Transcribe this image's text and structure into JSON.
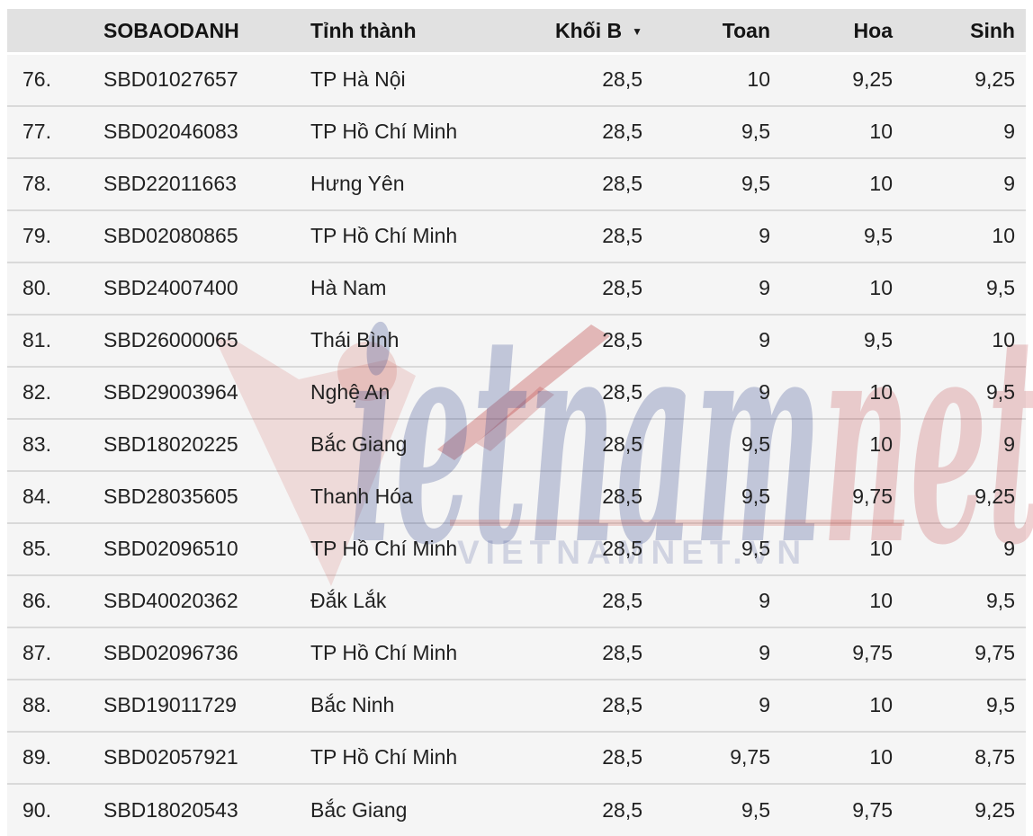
{
  "table": {
    "columns": [
      {
        "id": "index",
        "label": ""
      },
      {
        "id": "sbd",
        "label": "SOBAODANH"
      },
      {
        "id": "province",
        "label": "Tỉnh thành"
      },
      {
        "id": "khoi_b",
        "label": "Khối B"
      },
      {
        "id": "toan",
        "label": "Toan"
      },
      {
        "id": "hoa",
        "label": "Hoa"
      },
      {
        "id": "sinh",
        "label": "Sinh"
      }
    ],
    "rows": [
      {
        "index": "76.",
        "sbd": "SBD01027657",
        "province": "TP Hà Nội",
        "khoi_b": "28,5",
        "toan": "10",
        "hoa": "9,25",
        "sinh": "9,25"
      },
      {
        "index": "77.",
        "sbd": "SBD02046083",
        "province": "TP Hồ Chí Minh",
        "khoi_b": "28,5",
        "toan": "9,5",
        "hoa": "10",
        "sinh": "9"
      },
      {
        "index": "78.",
        "sbd": "SBD22011663",
        "province": "Hưng Yên",
        "khoi_b": "28,5",
        "toan": "9,5",
        "hoa": "10",
        "sinh": "9"
      },
      {
        "index": "79.",
        "sbd": "SBD02080865",
        "province": "TP Hồ Chí Minh",
        "khoi_b": "28,5",
        "toan": "9",
        "hoa": "9,5",
        "sinh": "10"
      },
      {
        "index": "80.",
        "sbd": "SBD24007400",
        "province": "Hà Nam",
        "khoi_b": "28,5",
        "toan": "9",
        "hoa": "10",
        "sinh": "9,5"
      },
      {
        "index": "81.",
        "sbd": "SBD26000065",
        "province": "Thái Bình",
        "khoi_b": "28,5",
        "toan": "9",
        "hoa": "9,5",
        "sinh": "10"
      },
      {
        "index": "82.",
        "sbd": "SBD29003964",
        "province": "Nghệ An",
        "khoi_b": "28,5",
        "toan": "9",
        "hoa": "10",
        "sinh": "9,5"
      },
      {
        "index": "83.",
        "sbd": "SBD18020225",
        "province": "Bắc Giang",
        "khoi_b": "28,5",
        "toan": "9,5",
        "hoa": "10",
        "sinh": "9"
      },
      {
        "index": "84.",
        "sbd": "SBD28035605",
        "province": "Thanh Hóa",
        "khoi_b": "28,5",
        "toan": "9,5",
        "hoa": "9,75",
        "sinh": "9,25"
      },
      {
        "index": "85.",
        "sbd": "SBD02096510",
        "province": "TP Hồ Chí Minh",
        "khoi_b": "28,5",
        "toan": "9,5",
        "hoa": "10",
        "sinh": "9"
      },
      {
        "index": "86.",
        "sbd": "SBD40020362",
        "province": "Đắk Lắk",
        "khoi_b": "28,5",
        "toan": "9",
        "hoa": "10",
        "sinh": "9,5"
      },
      {
        "index": "87.",
        "sbd": "SBD02096736",
        "province": "TP Hồ Chí Minh",
        "khoi_b": "28,5",
        "toan": "9",
        "hoa": "9,75",
        "sinh": "9,75"
      },
      {
        "index": "88.",
        "sbd": "SBD19011729",
        "province": "Bắc Ninh",
        "khoi_b": "28,5",
        "toan": "9",
        "hoa": "10",
        "sinh": "9,5"
      },
      {
        "index": "89.",
        "sbd": "SBD02057921",
        "province": "TP Hồ Chí Minh",
        "khoi_b": "28,5",
        "toan": "9,75",
        "hoa": "10",
        "sinh": "8,75"
      },
      {
        "index": "90.",
        "sbd": "SBD18020543",
        "province": "Bắc Giang",
        "khoi_b": "28,5",
        "toan": "9,5",
        "hoa": "9,75",
        "sinh": "9,25"
      }
    ]
  },
  "icons": {
    "sort_caret": "▼"
  },
  "watermark": {
    "logo_blue": "ietnam",
    "logo_red": "net",
    "site_text": "VIETNAMNET.VN"
  },
  "colors": {
    "header_bg": "#e1e1e1",
    "row_bg": "#f5f5f5",
    "separator": "#d9d9d9",
    "text": "#212121",
    "watermark_blue": "#3b4a8f",
    "watermark_red": "#b52025"
  }
}
